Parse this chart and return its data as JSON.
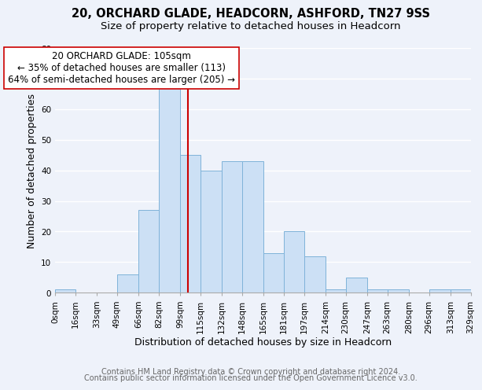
{
  "title": "20, ORCHARD GLADE, HEADCORN, ASHFORD, TN27 9SS",
  "subtitle": "Size of property relative to detached houses in Headcorn",
  "xlabel": "Distribution of detached houses by size in Headcorn",
  "ylabel": "Number of detached properties",
  "bar_values": [
    1,
    0,
    0,
    6,
    27,
    67,
    45,
    40,
    43,
    43,
    13,
    20,
    12,
    1,
    5,
    1,
    1,
    0,
    1,
    1
  ],
  "bin_edges": [
    0,
    16,
    33,
    49,
    66,
    82,
    99,
    115,
    132,
    148,
    165,
    181,
    197,
    214,
    230,
    247,
    263,
    280,
    296,
    313,
    329
  ],
  "tick_labels": [
    "0sqm",
    "16sqm",
    "33sqm",
    "49sqm",
    "66sqm",
    "82sqm",
    "99sqm",
    "115sqm",
    "132sqm",
    "148sqm",
    "165sqm",
    "181sqm",
    "197sqm",
    "214sqm",
    "230sqm",
    "247sqm",
    "263sqm",
    "280sqm",
    "296sqm",
    "313sqm",
    "329sqm"
  ],
  "bar_color": "#cce0f5",
  "bar_edge_color": "#7fb3d9",
  "vline_x": 105,
  "vline_color": "#cc0000",
  "annotation_line1": "20 ORCHARD GLADE: 105sqm",
  "annotation_line2": "← 35% of detached houses are smaller (113)",
  "annotation_line3": "64% of semi-detached houses are larger (205) →",
  "annotation_box_color": "#ffffff",
  "annotation_box_edge": "#cc0000",
  "ylim": [
    0,
    80
  ],
  "yticks": [
    0,
    10,
    20,
    30,
    40,
    50,
    60,
    70,
    80
  ],
  "footer_line1": "Contains HM Land Registry data © Crown copyright and database right 2024.",
  "footer_line2": "Contains public sector information licensed under the Open Government Licence v3.0.",
  "background_color": "#eef2fa",
  "grid_color": "#ffffff",
  "title_fontsize": 10.5,
  "subtitle_fontsize": 9.5,
  "axis_label_fontsize": 9,
  "tick_fontsize": 7.5,
  "annotation_fontsize": 8.5,
  "footer_fontsize": 7
}
